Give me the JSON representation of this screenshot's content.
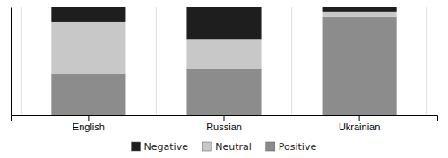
{
  "chart_data": {
    "type": "bar",
    "stacked": true,
    "categories": [
      "English",
      "Russian",
      "Ukrainian"
    ],
    "series": [
      {
        "name": "Positive",
        "color": "#8c8c8c",
        "values": [
          0.38,
          0.43,
          0.91
        ]
      },
      {
        "name": "Neutral",
        "color": "#c8c8c8",
        "values": [
          0.48,
          0.27,
          0.05
        ]
      },
      {
        "name": "Negative",
        "color": "#1e1e1e",
        "values": [
          0.14,
          0.3,
          0.04
        ]
      }
    ],
    "ylim": [
      0,
      1.0
    ],
    "tick_labels": "x",
    "grid": true,
    "legend": "bottom"
  }
}
